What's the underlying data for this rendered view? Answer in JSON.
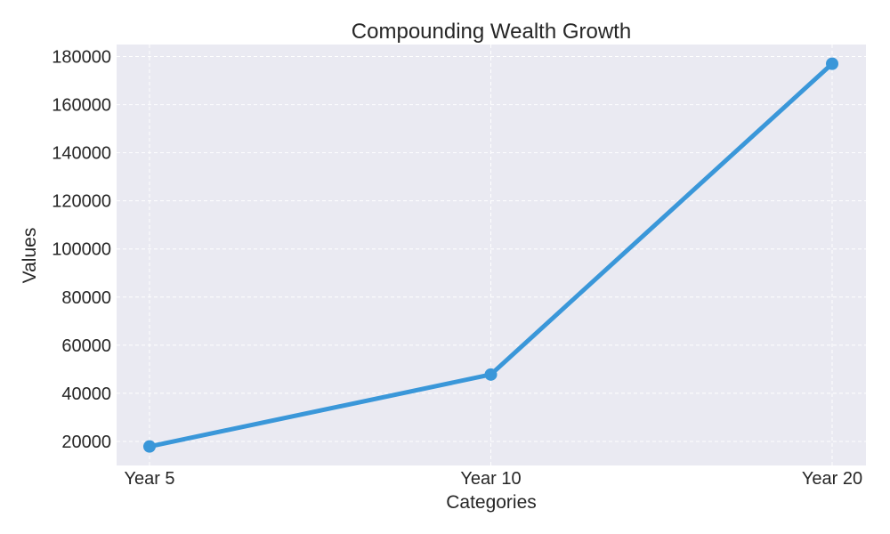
{
  "chart_data": {
    "type": "line",
    "title": "Compounding Wealth Growth",
    "xlabel": "Categories",
    "ylabel": "Values",
    "categories": [
      "Year 5",
      "Year 10",
      "Year 20"
    ],
    "series": [
      {
        "values": [
          17900,
          47800,
          177000
        ]
      }
    ],
    "ylim": [
      10000,
      185000
    ],
    "yticks": [
      20000,
      40000,
      60000,
      80000,
      100000,
      120000,
      140000,
      160000,
      180000
    ],
    "grid": true,
    "line_color": "#3a97d9",
    "plot_background": "#eaeaf2"
  }
}
